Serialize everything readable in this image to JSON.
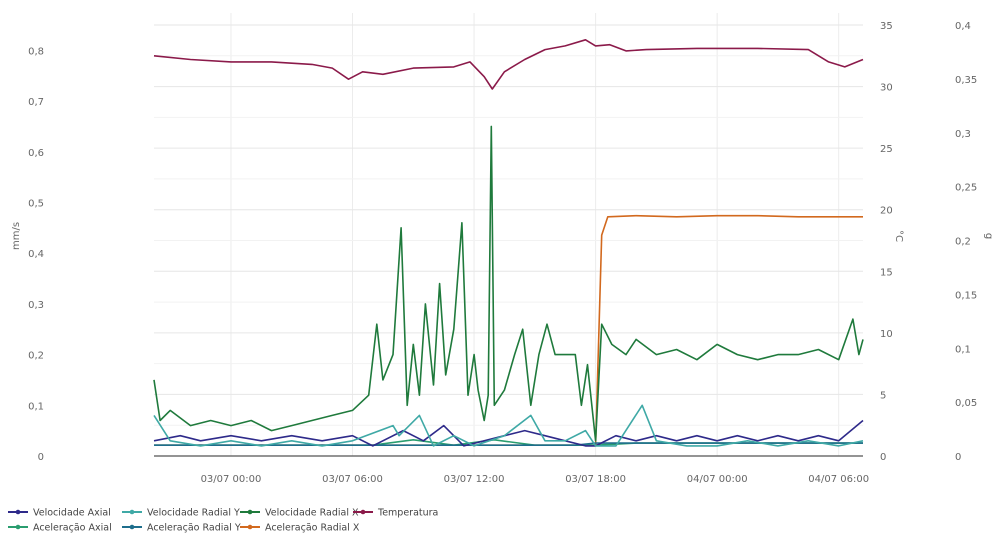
{
  "chart_data": {
    "type": "line",
    "title": "",
    "x_axis": {
      "label": "",
      "range_hours": [
        -3.8,
        31.2
      ],
      "ticks": [
        {
          "value": 0,
          "label": "03/07 00:00"
        },
        {
          "value": 6,
          "label": "03/07 06:00"
        },
        {
          "value": 12,
          "label": "03/07 12:00"
        },
        {
          "value": 18,
          "label": "03/07 18:00"
        },
        {
          "value": 24,
          "label": "04/07 00:00"
        },
        {
          "value": 30,
          "label": "04/07 06:00"
        }
      ]
    },
    "y_axes": {
      "velocity": {
        "label": "mm/s",
        "range": [
          0,
          0.85
        ],
        "ticks": [
          "0",
          "0,1",
          "0,2",
          "0,3",
          "0,4",
          "0,5",
          "0,6",
          "0,7",
          "0,8"
        ]
      },
      "temperature": {
        "label": "°C",
        "range": [
          0,
          35
        ],
        "ticks": [
          "0",
          "5",
          "10",
          "15",
          "20",
          "25",
          "30",
          "35"
        ]
      },
      "acceleration": {
        "label": "g",
        "range": [
          0,
          0.4
        ],
        "ticks": [
          "0",
          "0,05",
          "0,1",
          "0,15",
          "0,2",
          "0,25",
          "0,3",
          "0,35",
          "0,4"
        ]
      }
    },
    "series": [
      {
        "name": "Velocidade Axial",
        "axis": "velocity",
        "color": "#2e2a8a",
        "points": [
          [
            -3.8,
            0.03
          ],
          [
            -2.5,
            0.04
          ],
          [
            -1.5,
            0.03
          ],
          [
            0,
            0.04
          ],
          [
            1.5,
            0.03
          ],
          [
            3,
            0.04
          ],
          [
            4.5,
            0.03
          ],
          [
            6,
            0.04
          ],
          [
            7,
            0.02
          ],
          [
            8.5,
            0.05
          ],
          [
            9.5,
            0.03
          ],
          [
            10.5,
            0.06
          ],
          [
            11.5,
            0.02
          ],
          [
            12.5,
            0.03
          ],
          [
            13.5,
            0.04
          ],
          [
            14.5,
            0.05
          ],
          [
            15.5,
            0.04
          ],
          [
            16.5,
            0.03
          ],
          [
            17.5,
            0.02
          ],
          [
            18,
            0.02
          ],
          [
            19,
            0.04
          ],
          [
            20,
            0.03
          ],
          [
            21,
            0.04
          ],
          [
            22,
            0.03
          ],
          [
            23,
            0.04
          ],
          [
            24,
            0.03
          ],
          [
            25,
            0.04
          ],
          [
            26,
            0.03
          ],
          [
            27,
            0.04
          ],
          [
            28,
            0.03
          ],
          [
            29,
            0.04
          ],
          [
            30,
            0.03
          ],
          [
            31.2,
            0.07
          ]
        ]
      },
      {
        "name": "Velocidade Radial Y",
        "axis": "velocity",
        "color": "#3fa9a6",
        "points": [
          [
            -3.8,
            0.08
          ],
          [
            -3,
            0.03
          ],
          [
            -1.5,
            0.02
          ],
          [
            0,
            0.03
          ],
          [
            1.5,
            0.02
          ],
          [
            3,
            0.03
          ],
          [
            4.5,
            0.02
          ],
          [
            6,
            0.03
          ],
          [
            8,
            0.06
          ],
          [
            8.3,
            0.04
          ],
          [
            9.3,
            0.08
          ],
          [
            10,
            0.02
          ],
          [
            11,
            0.04
          ],
          [
            12,
            0.02
          ],
          [
            13.5,
            0.04
          ],
          [
            14.8,
            0.08
          ],
          [
            15.5,
            0.03
          ],
          [
            16.5,
            0.03
          ],
          [
            17.5,
            0.05
          ],
          [
            18,
            0.02
          ],
          [
            19,
            0.02
          ],
          [
            20.3,
            0.1
          ],
          [
            21,
            0.03
          ],
          [
            22.5,
            0.02
          ],
          [
            24,
            0.02
          ],
          [
            25.5,
            0.03
          ],
          [
            27,
            0.02
          ],
          [
            28.5,
            0.03
          ],
          [
            30,
            0.02
          ],
          [
            31.2,
            0.03
          ]
        ]
      },
      {
        "name": "Velocidade Radial X",
        "axis": "velocity",
        "color": "#1f7a3c",
        "points": [
          [
            -3.8,
            0.15
          ],
          [
            -3.5,
            0.07
          ],
          [
            -3,
            0.09
          ],
          [
            -2,
            0.06
          ],
          [
            -1,
            0.07
          ],
          [
            0,
            0.06
          ],
          [
            1,
            0.07
          ],
          [
            2,
            0.05
          ],
          [
            3,
            0.06
          ],
          [
            4,
            0.07
          ],
          [
            5,
            0.08
          ],
          [
            6,
            0.09
          ],
          [
            6.8,
            0.12
          ],
          [
            7.2,
            0.26
          ],
          [
            7.5,
            0.15
          ],
          [
            8,
            0.2
          ],
          [
            8.4,
            0.45
          ],
          [
            8.7,
            0.1
          ],
          [
            9,
            0.22
          ],
          [
            9.3,
            0.12
          ],
          [
            9.6,
            0.3
          ],
          [
            10,
            0.14
          ],
          [
            10.3,
            0.34
          ],
          [
            10.6,
            0.16
          ],
          [
            11,
            0.25
          ],
          [
            11.4,
            0.46
          ],
          [
            11.7,
            0.12
          ],
          [
            12,
            0.2
          ],
          [
            12.2,
            0.13
          ],
          [
            12.5,
            0.07
          ],
          [
            12.7,
            0.12
          ],
          [
            12.85,
            0.65
          ],
          [
            13,
            0.1
          ],
          [
            13.5,
            0.13
          ],
          [
            14,
            0.2
          ],
          [
            14.4,
            0.25
          ],
          [
            14.8,
            0.1
          ],
          [
            15.2,
            0.2
          ],
          [
            15.6,
            0.26
          ],
          [
            16,
            0.2
          ],
          [
            17,
            0.2
          ],
          [
            17.3,
            0.1
          ],
          [
            17.6,
            0.18
          ],
          [
            18,
            0.03
          ],
          [
            18.3,
            0.26
          ],
          [
            18.8,
            0.22
          ],
          [
            19.5,
            0.2
          ],
          [
            20,
            0.23
          ],
          [
            21,
            0.2
          ],
          [
            22,
            0.21
          ],
          [
            23,
            0.19
          ],
          [
            24,
            0.22
          ],
          [
            25,
            0.2
          ],
          [
            26,
            0.19
          ],
          [
            27,
            0.2
          ],
          [
            28,
            0.2
          ],
          [
            29,
            0.21
          ],
          [
            30,
            0.19
          ],
          [
            30.7,
            0.27
          ],
          [
            31,
            0.2
          ],
          [
            31.2,
            0.23
          ]
        ]
      },
      {
        "name": "Temperatura",
        "axis": "temperature",
        "color": "#8b1a4a",
        "points": [
          [
            -3.8,
            32.5
          ],
          [
            -2,
            32.2
          ],
          [
            0,
            32
          ],
          [
            2,
            32
          ],
          [
            4,
            31.8
          ],
          [
            5,
            31.5
          ],
          [
            5.8,
            30.6
          ],
          [
            6.5,
            31.2
          ],
          [
            7.5,
            31
          ],
          [
            9,
            31.5
          ],
          [
            11,
            31.6
          ],
          [
            11.8,
            32
          ],
          [
            12.5,
            30.8
          ],
          [
            12.9,
            29.8
          ],
          [
            13.5,
            31.2
          ],
          [
            14.5,
            32.2
          ],
          [
            15.5,
            33
          ],
          [
            16.5,
            33.3
          ],
          [
            17.5,
            33.8
          ],
          [
            18,
            33.3
          ],
          [
            18.7,
            33.4
          ],
          [
            19.5,
            32.9
          ],
          [
            20.5,
            33
          ],
          [
            23,
            33.1
          ],
          [
            26,
            33.1
          ],
          [
            28.5,
            33
          ],
          [
            29.5,
            32
          ],
          [
            30.3,
            31.6
          ],
          [
            31.2,
            32.2
          ]
        ]
      },
      {
        "name": "Aceleração Axial",
        "axis": "acceleration",
        "color": "#2a9d6f",
        "points": [
          [
            -3.8,
            0.01
          ],
          [
            -1,
            0.01
          ],
          [
            2,
            0.01
          ],
          [
            5,
            0.01
          ],
          [
            7,
            0.01
          ],
          [
            9,
            0.015
          ],
          [
            11,
            0.01
          ],
          [
            13,
            0.015
          ],
          [
            15,
            0.01
          ],
          [
            17,
            0.01
          ],
          [
            18,
            0.01
          ],
          [
            20,
            0.012
          ],
          [
            23,
            0.012
          ],
          [
            26,
            0.012
          ],
          [
            29,
            0.012
          ],
          [
            31.2,
            0.012
          ]
        ]
      },
      {
        "name": "Aceleração Radial Y",
        "axis": "acceleration",
        "color": "#1e6e8c",
        "points": [
          [
            -3.8,
            0.01
          ],
          [
            -1,
            0.01
          ],
          [
            2,
            0.01
          ],
          [
            5,
            0.01
          ],
          [
            8,
            0.01
          ],
          [
            11,
            0.01
          ],
          [
            14,
            0.01
          ],
          [
            17,
            0.01
          ],
          [
            18,
            0.012
          ],
          [
            21,
            0.012
          ],
          [
            24,
            0.012
          ],
          [
            27,
            0.012
          ],
          [
            31.2,
            0.012
          ]
        ]
      },
      {
        "name": "Aceleração Radial X",
        "axis": "acceleration",
        "color": "#d2691e",
        "points": [
          [
            -3.8,
            0.01
          ],
          [
            0,
            0.01
          ],
          [
            4,
            0.01
          ],
          [
            8,
            0.01
          ],
          [
            12,
            0.01
          ],
          [
            16,
            0.01
          ],
          [
            18,
            0.01
          ],
          [
            18.3,
            0.205
          ],
          [
            18.6,
            0.222
          ],
          [
            20,
            0.223
          ],
          [
            22,
            0.222
          ],
          [
            24,
            0.223
          ],
          [
            26,
            0.223
          ],
          [
            28,
            0.222
          ],
          [
            30,
            0.222
          ],
          [
            31.2,
            0.222
          ]
        ]
      }
    ],
    "legend": {
      "position": "bottom-left",
      "entries": [
        "Velocidade Axial",
        "Velocidade Radial Y",
        "Velocidade Radial X",
        "Temperatura",
        "Aceleração Axial",
        "Aceleração Radial Y",
        "Aceleração Radial X"
      ]
    },
    "grid": true
  }
}
